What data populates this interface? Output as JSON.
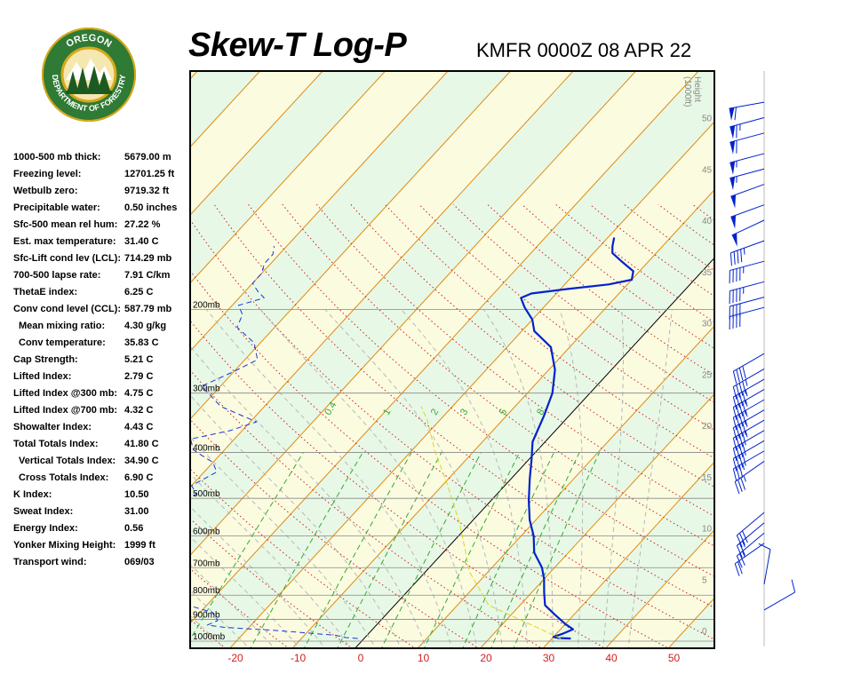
{
  "logo": {
    "top_text": "OREGON",
    "bottom_text": "DEPARTMENT OF FORESTRY"
  },
  "title": "Skew-T Log-P",
  "station_time": "KMFR 0000Z 08 APR 22",
  "indices": [
    {
      "label": "1000-500 mb thick:",
      "value": "5679.00 m",
      "indent": false
    },
    {
      "label": "Freezing level:",
      "value": "12701.25 ft",
      "indent": false
    },
    {
      "label": "Wetbulb zero:",
      "value": "9719.32 ft",
      "indent": false
    },
    {
      "label": "Precipitable water:",
      "value": "0.50 inches",
      "indent": false
    },
    {
      "label": "Sfc-500 mean rel hum:",
      "value": "27.22 %",
      "indent": false
    },
    {
      "label": "Est. max temperature:",
      "value": "31.40 C",
      "indent": false
    },
    {
      "label": "Sfc-Lift cond lev (LCL):",
      "value": "714.29 mb",
      "indent": false
    },
    {
      "label": "700-500 lapse rate:",
      "value": "7.91 C/km",
      "indent": false
    },
    {
      "label": "ThetaE index:",
      "value": "6.25 C",
      "indent": false
    },
    {
      "label": "Conv cond level (CCL):",
      "value": "587.79 mb",
      "indent": false
    },
    {
      "label": "Mean mixing ratio:",
      "value": "4.30 g/kg",
      "indent": true
    },
    {
      "label": "Conv temperature:",
      "value": "35.83 C",
      "indent": true
    },
    {
      "label": "Cap Strength:",
      "value": "5.21 C",
      "indent": false
    },
    {
      "label": "Lifted Index:",
      "value": "2.79 C",
      "indent": false
    },
    {
      "label": "Lifted Index @300 mb:",
      "value": "4.75 C",
      "indent": false
    },
    {
      "label": "Lifted Index @700 mb:",
      "value": "4.32 C",
      "indent": false
    },
    {
      "label": "Showalter Index:",
      "value": "4.43 C",
      "indent": false
    },
    {
      "label": "Total Totals Index:",
      "value": "41.80 C",
      "indent": false
    },
    {
      "label": "Vertical Totals Index:",
      "value": "34.90 C",
      "indent": true
    },
    {
      "label": "Cross Totals Index:",
      "value": "6.90 C",
      "indent": true
    },
    {
      "label": "K Index:",
      "value": "10.50",
      "indent": false
    },
    {
      "label": "Sweat Index:",
      "value": "31.00",
      "indent": false
    },
    {
      "label": "Energy Index:",
      "value": "0.56",
      "indent": false
    },
    {
      "label": "Yonker Mixing Height:",
      "value": "1999 ft",
      "indent": false
    },
    {
      "label": "Transport wind:",
      "value": "069/03",
      "indent": false
    }
  ],
  "colors": {
    "temperature": "#0022cc",
    "dewpoint": "#1a33dd",
    "parcel": "#d8d820",
    "isotherm": "#e08a10",
    "dry_adiabat": "#cc2222",
    "moist_adiabat": "#b8b8b8",
    "mixing_ratio": "#33aa33",
    "band_yellow": "#fbfbe0",
    "band_green": "#e8f8e6"
  },
  "chart_data": {
    "type": "line",
    "title": "Skew-T Log-P",
    "subtitle": "KMFR 0000Z 08 APR 22",
    "xlabel": "",
    "ylabel": "",
    "xlim": [
      -29,
      55
    ],
    "x_ticks": [
      -20,
      -10,
      0,
      10,
      20,
      30,
      40,
      50
    ],
    "pressure_levels": [
      1000,
      900,
      800,
      700,
      600,
      500,
      400,
      300,
      200
    ],
    "pressure_labels": [
      "1000mb",
      "900mb",
      "800mb",
      "700mb",
      "600mb",
      "500mb",
      "400mb",
      "300mb",
      "200mb"
    ],
    "height_axis_label": [
      "Height",
      "(1000ft)"
    ],
    "height_ticks": [
      0,
      5,
      10,
      15,
      20,
      25,
      30,
      35,
      40,
      45,
      50
    ],
    "mixing_ratio_labels": [
      "0.4",
      "1",
      "2",
      "3",
      "5",
      "8"
    ],
    "series": [
      {
        "name": "Temperature",
        "points": [
          [
            33,
            987
          ],
          [
            31,
            985
          ],
          [
            30,
            980
          ],
          [
            31,
            965
          ],
          [
            32,
            944
          ],
          [
            30,
            920
          ],
          [
            27,
            880
          ],
          [
            24,
            840
          ],
          [
            22,
            790
          ],
          [
            20,
            740
          ],
          [
            18,
            700
          ],
          [
            14.5,
            650
          ],
          [
            12,
            600
          ],
          [
            9,
            555
          ],
          [
            6,
            505
          ],
          [
            3,
            455
          ],
          [
            0.5,
            415
          ],
          [
            -2,
            380
          ],
          [
            -4,
            335
          ],
          [
            -6,
            300
          ],
          [
            -9,
            268
          ],
          [
            -13,
            240
          ],
          [
            -18,
            222
          ],
          [
            -20,
            210
          ],
          [
            -23,
            198
          ],
          [
            -25,
            189
          ],
          [
            -24,
            185
          ],
          [
            -19,
            181
          ],
          [
            -13,
            177
          ],
          [
            -10,
            173
          ],
          [
            -11,
            166
          ],
          [
            -14,
            159
          ],
          [
            -17,
            152
          ],
          [
            -18,
            147
          ],
          [
            -19,
            141
          ]
        ]
      },
      {
        "name": "Dewpoint",
        "points": [
          [
            -1,
            987
          ],
          [
            -3,
            983
          ],
          [
            -5,
            972
          ],
          [
            -15,
            950
          ],
          [
            -24,
            935
          ],
          [
            -27,
            925
          ],
          [
            -26,
            905
          ],
          [
            -28,
            870
          ],
          [
            -33,
            840
          ],
          [
            -38,
            800
          ],
          [
            -42,
            770
          ],
          [
            -45,
            745
          ],
          [
            -47,
            720
          ],
          [
            -44,
            700
          ],
          [
            -48,
            690
          ],
          [
            -52,
            675
          ],
          [
            -49,
            660
          ],
          [
            -50,
            640
          ],
          [
            -51,
            615
          ],
          [
            -47,
            590
          ],
          [
            -48,
            560
          ],
          [
            -48,
            530
          ],
          [
            -49,
            505
          ],
          [
            -48,
            490
          ],
          [
            -50,
            470
          ],
          [
            -49,
            455
          ],
          [
            -48,
            440
          ],
          [
            -50,
            420
          ],
          [
            -53,
            405
          ],
          [
            -55,
            395
          ],
          [
            -57,
            375
          ],
          [
            -52,
            360
          ],
          [
            -49,
            345
          ],
          [
            -57,
            320
          ],
          [
            -63,
            290
          ],
          [
            -60,
            270
          ],
          [
            -58,
            255
          ],
          [
            -61,
            235
          ],
          [
            -66,
            218
          ],
          [
            -67,
            205
          ],
          [
            -69,
            196
          ],
          [
            -66,
            189
          ],
          [
            -68,
            183
          ],
          [
            -70,
            176
          ],
          [
            -70,
            168
          ],
          [
            -71,
            160
          ],
          [
            -71,
            153
          ],
          [
            -72,
            147
          ]
        ]
      },
      {
        "name": "Parcel",
        "points": [
          [
            31.4,
            987
          ],
          [
            15,
            840
          ],
          [
            7,
            714
          ],
          [
            3,
            640
          ],
          [
            -2,
            560
          ],
          [
            -10,
            460
          ],
          [
            -16,
            400
          ],
          [
            -22,
            342
          ],
          [
            -25,
            320
          ]
        ]
      }
    ],
    "wind_barbs": [
      {
        "h_kft": 51.5,
        "dir": 260,
        "spd": 60
      },
      {
        "h_kft": 50,
        "dir": 255,
        "spd": 65
      },
      {
        "h_kft": 48.5,
        "dir": 255,
        "spd": 60
      },
      {
        "h_kft": 46.5,
        "dir": 255,
        "spd": 55
      },
      {
        "h_kft": 45,
        "dir": 255,
        "spd": 55
      },
      {
        "h_kft": 43.5,
        "dir": 250,
        "spd": 50
      },
      {
        "h_kft": 41.5,
        "dir": 250,
        "spd": 50
      },
      {
        "h_kft": 40,
        "dir": 245,
        "spd": 50
      },
      {
        "h_kft": 38,
        "dir": 250,
        "spd": 45
      },
      {
        "h_kft": 36,
        "dir": 255,
        "spd": 45
      },
      {
        "h_kft": 34,
        "dir": 255,
        "spd": 45
      },
      {
        "h_kft": 32.5,
        "dir": 255,
        "spd": 40
      },
      {
        "h_kft": 31.5,
        "dir": 255,
        "spd": 40
      },
      {
        "h_kft": 27,
        "dir": 240,
        "spd": 40
      },
      {
        "h_kft": 25.5,
        "dir": 240,
        "spd": 45
      },
      {
        "h_kft": 24.5,
        "dir": 240,
        "spd": 45
      },
      {
        "h_kft": 23.5,
        "dir": 240,
        "spd": 45
      },
      {
        "h_kft": 22.5,
        "dir": 240,
        "spd": 45
      },
      {
        "h_kft": 21.5,
        "dir": 240,
        "spd": 45
      },
      {
        "h_kft": 20.5,
        "dir": 240,
        "spd": 45
      },
      {
        "h_kft": 19.5,
        "dir": 240,
        "spd": 40
      },
      {
        "h_kft": 18.5,
        "dir": 240,
        "spd": 40
      },
      {
        "h_kft": 17.5,
        "dir": 240,
        "spd": 35
      },
      {
        "h_kft": 16.5,
        "dir": 235,
        "spd": 35
      },
      {
        "h_kft": 11.5,
        "dir": 230,
        "spd": 30
      },
      {
        "h_kft": 10.5,
        "dir": 230,
        "spd": 25
      },
      {
        "h_kft": 9.5,
        "dir": 230,
        "spd": 25
      },
      {
        "h_kft": 8.5,
        "dir": 235,
        "spd": 20
      },
      {
        "h_kft": 4.5,
        "dir": 10,
        "spd": 10
      },
      {
        "h_kft": 2,
        "dir": 60,
        "spd": 10
      }
    ]
  }
}
